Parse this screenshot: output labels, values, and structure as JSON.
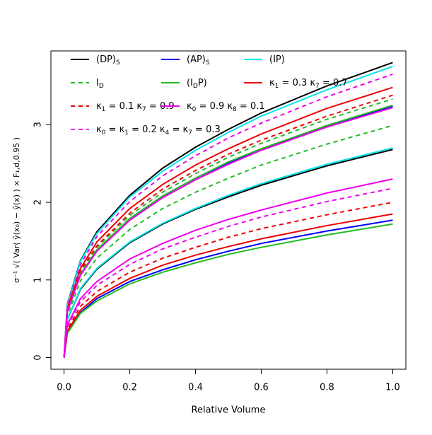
{
  "chart_data": {
    "type": "line",
    "xlabel": "Relative Volume",
    "ylabel": "σ⁻¹ √( Var( ŷ(x₀) − ŷ(x) ) × F₁,d,0.95 )",
    "x": [
      0,
      0.01,
      0.05,
      0.1,
      0.2,
      0.3,
      0.4,
      0.5,
      0.6,
      0.8,
      1.0
    ],
    "xlim": [
      -0.04,
      1.04
    ],
    "ylim": [
      -0.15,
      3.95
    ],
    "xticks": [
      {
        "value": 0,
        "label": "0.0"
      },
      {
        "value": 0.2,
        "label": "0.2"
      },
      {
        "value": 0.4,
        "label": "0.4"
      },
      {
        "value": 0.6,
        "label": "0.6"
      },
      {
        "value": 0.8,
        "label": "0.8"
      },
      {
        "value": 1.0,
        "label": "1.0"
      }
    ],
    "yticks": [
      0,
      1,
      2,
      3
    ],
    "series": [
      {
        "name": [
          "(DP)",
          "S"
        ],
        "color": "#000000",
        "dashed": false,
        "values": [
          0,
          0.69,
          1.25,
          1.62,
          2.09,
          2.44,
          2.71,
          2.94,
          3.15,
          3.5,
          3.8
        ],
        "values2": [
          0,
          0.49,
          0.88,
          1.14,
          1.48,
          1.72,
          1.91,
          2.07,
          2.22,
          2.47,
          2.68
        ]
      },
      {
        "name": [
          "(AP)",
          "S"
        ],
        "color": "#0000ff",
        "dashed": false,
        "values": [
          0,
          0.59,
          1.07,
          1.38,
          1.79,
          2.08,
          2.31,
          2.51,
          2.68,
          2.98,
          3.24
        ],
        "values2": [
          0,
          0.32,
          0.58,
          0.76,
          0.98,
          1.13,
          1.26,
          1.37,
          1.47,
          1.63,
          1.77
        ]
      },
      {
        "name": [
          "(IP)"
        ],
        "color": "#00e5ee",
        "dashed": false,
        "values": [
          0,
          0.68,
          1.24,
          1.6,
          2.07,
          2.4,
          2.67,
          2.9,
          3.11,
          3.45,
          3.75
        ],
        "values2": [
          0,
          0.49,
          0.89,
          1.15,
          1.49,
          1.73,
          1.92,
          2.09,
          2.24,
          2.49,
          2.7
        ]
      },
      {
        "name": [
          "I",
          "D"
        ],
        "color": "#22bb22",
        "dashed": true,
        "values": [
          0,
          0.61,
          1.1,
          1.42,
          1.83,
          2.13,
          2.37,
          2.58,
          2.76,
          3.07,
          3.33
        ],
        "values2": [
          0,
          0.54,
          0.99,
          1.28,
          1.65,
          1.92,
          2.13,
          2.31,
          2.48,
          2.75,
          2.99
        ]
      },
      {
        "name": [
          "(I",
          "D",
          "P)"
        ],
        "color": "#22bb22",
        "dashed": false,
        "values": [
          0,
          0.59,
          1.07,
          1.39,
          1.79,
          2.08,
          2.31,
          2.52,
          2.69,
          2.99,
          3.25
        ],
        "values2": [
          0,
          0.31,
          0.57,
          0.73,
          0.95,
          1.1,
          1.22,
          1.33,
          1.42,
          1.58,
          1.72
        ]
      },
      {
        "name": [
          "κ",
          "1",
          " = 0.3 κ",
          "7",
          " = 0.7"
        ],
        "color": "#ee0000",
        "dashed": false,
        "values": [
          0,
          0.63,
          1.15,
          1.49,
          1.92,
          2.23,
          2.48,
          2.69,
          2.88,
          3.21,
          3.48
        ],
        "values2": [
          0,
          0.34,
          0.61,
          0.79,
          1.02,
          1.19,
          1.32,
          1.43,
          1.53,
          1.7,
          1.85
        ]
      },
      {
        "name": [
          "κ",
          "1",
          " = 0.1 κ",
          "7",
          " = 0.9"
        ],
        "color": "#ee0000",
        "dashed": true,
        "values": [
          0,
          0.62,
          1.12,
          1.44,
          1.86,
          2.17,
          2.41,
          2.62,
          2.8,
          3.11,
          3.38
        ],
        "values2": [
          0,
          0.36,
          0.66,
          0.85,
          1.1,
          1.28,
          1.42,
          1.55,
          1.66,
          1.84,
          2.0
        ]
      },
      {
        "name": [
          "κ",
          "0",
          " = 0.9 κ",
          "8",
          " = 0.1"
        ],
        "color": "#ee00ee",
        "dashed": false,
        "values": [
          0,
          0.59,
          1.06,
          1.37,
          1.77,
          2.06,
          2.29,
          2.49,
          2.67,
          2.97,
          3.22
        ],
        "values2": [
          0,
          0.42,
          0.76,
          0.98,
          1.27,
          1.47,
          1.64,
          1.78,
          1.9,
          2.12,
          2.3
        ]
      },
      {
        "name": [
          "κ",
          "0",
          " = κ",
          "1",
          " = 0.2 κ",
          "4",
          " = κ",
          "7",
          " = 0.3"
        ],
        "color": "#ee00ee",
        "dashed": true,
        "values": [
          0,
          0.66,
          1.2,
          1.56,
          2.01,
          2.34,
          2.6,
          2.83,
          3.02,
          3.36,
          3.65
        ],
        "values2": [
          0,
          0.4,
          0.72,
          0.93,
          1.2,
          1.4,
          1.55,
          1.69,
          1.81,
          2.01,
          2.18
        ]
      }
    ]
  }
}
